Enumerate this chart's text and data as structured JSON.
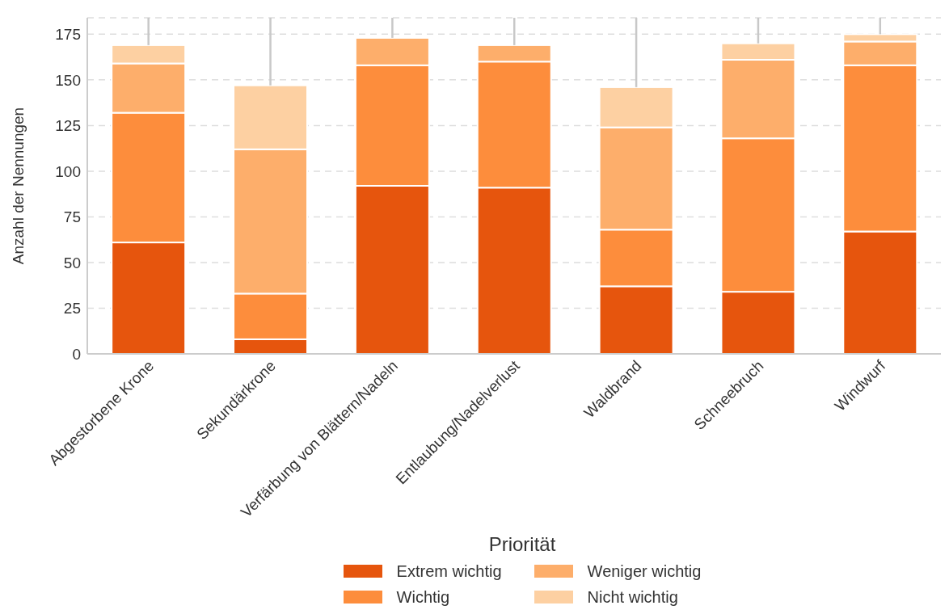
{
  "chart_data": {
    "type": "bar",
    "stacked": true,
    "categories": [
      "Abgestorbene Krone",
      "Sekundärkrone",
      "Verfärbung von Blättern/Nadeln",
      "Entlaubung/Nadelverlust",
      "Waldbrand",
      "Schneebruch",
      "Windwurf"
    ],
    "ylabel": "Anzahl der Nennungen",
    "legend_title": "Priorität",
    "legend": "bottom",
    "grid": "y",
    "ylim": [
      0,
      184
    ],
    "yticks": [
      0,
      25,
      50,
      75,
      100,
      125,
      150,
      175
    ],
    "series": [
      {
        "name": "Extrem wichtig",
        "color": "#e6550d",
        "values": [
          61,
          8,
          92,
          91,
          37,
          34,
          67
        ]
      },
      {
        "name": "Wichtig",
        "color": "#fd8d3c",
        "values": [
          71,
          25,
          66,
          69,
          31,
          84,
          91
        ]
      },
      {
        "name": "Weniger wichtig",
        "color": "#fdae6b",
        "values": [
          27,
          79,
          15,
          9,
          56,
          43,
          13
        ],
        "errors": [
          null,
          null,
          [
            173,
            184
          ],
          [
            169,
            184
          ],
          null,
          null,
          null
        ]
      },
      {
        "name": "Nicht wichtig",
        "color": "#fdd0a2",
        "values": [
          10,
          35,
          0,
          0,
          22,
          9,
          4
        ],
        "errors": [
          [
            169,
            184
          ],
          [
            147,
            184
          ],
          null,
          null,
          [
            146,
            184
          ],
          [
            170,
            184
          ],
          [
            175,
            184
          ]
        ]
      }
    ]
  }
}
